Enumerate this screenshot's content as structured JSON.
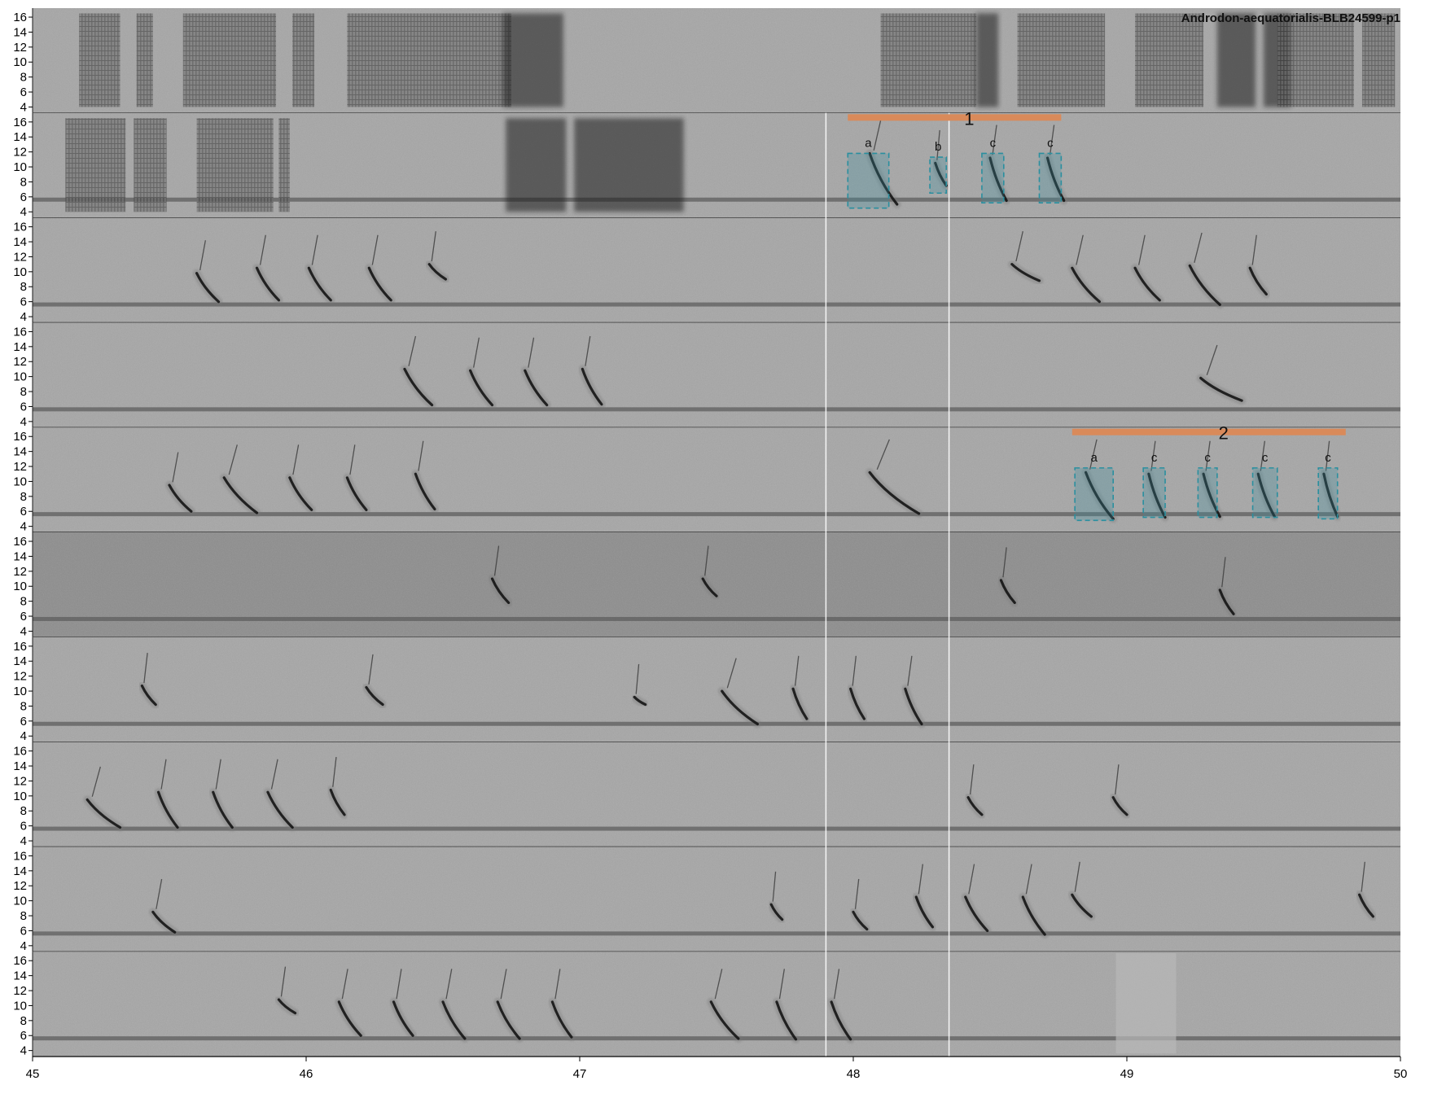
{
  "chart_data": {
    "type": "spectrogram",
    "title": "Androdon-aequatorialis-BLB24599-p1",
    "xlabel": "",
    "ylabel": "",
    "xlim": [
      45,
      50
    ],
    "ylim": [
      3.2,
      17.2
    ],
    "x_ticks": [
      45,
      46,
      47,
      48,
      49,
      50
    ],
    "y_ticks": [
      4,
      6,
      8,
      10,
      12,
      14,
      16
    ],
    "rows": 10,
    "selection_lines_x": [
      47.9,
      48.35
    ],
    "colors": {
      "background": "#a6a6a6",
      "motif_bar": "#d98a5a",
      "syllable_box": "#2a8f9f",
      "syllable_box_fill": "#3a8fa0",
      "selection_line": "#ffffff"
    },
    "motifs": [
      {
        "label": "1",
        "row": 1,
        "x_start": 47.98,
        "x_end": 48.76
      },
      {
        "label": "2",
        "row": 4,
        "x_start": 48.8,
        "x_end": 49.8
      }
    ],
    "syllables": [
      {
        "label": "a",
        "row": 1,
        "x_start": 47.98,
        "x_end": 48.13,
        "f_low": 4.5,
        "f_high": 11.8
      },
      {
        "label": "b",
        "row": 1,
        "x_start": 48.28,
        "x_end": 48.34,
        "f_low": 6.5,
        "f_high": 11.3
      },
      {
        "label": "c",
        "row": 1,
        "x_start": 48.47,
        "x_end": 48.55,
        "f_low": 5.2,
        "f_high": 11.8
      },
      {
        "label": "c",
        "row": 1,
        "x_start": 48.68,
        "x_end": 48.76,
        "f_low": 5.2,
        "f_high": 11.8
      },
      {
        "label": "a",
        "row": 4,
        "x_start": 48.81,
        "x_end": 48.95,
        "f_low": 4.8,
        "f_high": 11.8
      },
      {
        "label": "c",
        "row": 4,
        "x_start": 49.06,
        "x_end": 49.14,
        "f_low": 5.2,
        "f_high": 11.8
      },
      {
        "label": "c",
        "row": 4,
        "x_start": 49.26,
        "x_end": 49.33,
        "f_low": 5.2,
        "f_high": 11.8
      },
      {
        "label": "c",
        "row": 4,
        "x_start": 49.46,
        "x_end": 49.55,
        "f_low": 5.2,
        "f_high": 11.8
      },
      {
        "label": "c",
        "row": 4,
        "x_start": 49.7,
        "x_end": 49.77,
        "f_low": 5.0,
        "f_high": 11.8
      }
    ],
    "sounds": [
      [
        {
          "x": 45.17,
          "w": 0.15,
          "kind": "noise",
          "f": 4,
          "f2": 16.5
        },
        {
          "x": 45.38,
          "w": 0.06,
          "kind": "noise",
          "f": 4,
          "f2": 16.5
        },
        {
          "x": 45.55,
          "w": 0.34,
          "kind": "noise",
          "f": 4,
          "f2": 16.5
        },
        {
          "x": 45.95,
          "w": 0.08,
          "kind": "noise",
          "f": 4,
          "f2": 16.5
        },
        {
          "x": 46.15,
          "w": 0.6,
          "kind": "noise",
          "f": 4,
          "f2": 16.5
        },
        {
          "x": 46.72,
          "w": 0.22,
          "kind": "burst",
          "f": 4,
          "f2": 16.5
        },
        {
          "x": 48.1,
          "w": 0.35,
          "kind": "noise",
          "f": 4,
          "f2": 16.5
        },
        {
          "x": 48.45,
          "w": 0.08,
          "kind": "burst",
          "f": 4,
          "f2": 16.5
        },
        {
          "x": 48.6,
          "w": 0.32,
          "kind": "noise",
          "f": 4,
          "f2": 16.5
        },
        {
          "x": 49.03,
          "w": 0.25,
          "kind": "noise",
          "f": 4,
          "f2": 16.5
        },
        {
          "x": 49.33,
          "w": 0.14,
          "kind": "burst",
          "f": 4,
          "f2": 16.5
        },
        {
          "x": 49.5,
          "w": 0.1,
          "kind": "burst",
          "f": 4,
          "f2": 16.5
        },
        {
          "x": 49.55,
          "w": 0.28,
          "kind": "noise",
          "f": 4,
          "f2": 16.5
        },
        {
          "x": 49.86,
          "w": 0.12,
          "kind": "noise",
          "f": 4,
          "f2": 16.5
        }
      ],
      [
        {
          "x": 45.12,
          "w": 0.22,
          "kind": "noise",
          "f": 4,
          "f2": 16.5
        },
        {
          "x": 45.37,
          "w": 0.12,
          "kind": "noise",
          "f": 4,
          "f2": 16.5
        },
        {
          "x": 45.6,
          "w": 0.28,
          "kind": "noise",
          "f": 4,
          "f2": 16.5
        },
        {
          "x": 45.9,
          "w": 0.04,
          "kind": "noise",
          "f": 4,
          "f2": 16.5
        },
        {
          "x": 46.73,
          "w": 0.22,
          "kind": "burst",
          "f": 4,
          "f2": 16.5
        },
        {
          "x": 46.98,
          "w": 0.4,
          "kind": "burst",
          "f": 4,
          "f2": 16.5
        },
        {
          "x": 48.06,
          "w": 0.1,
          "kind": "call",
          "f": 11.8,
          "f2": 5
        },
        {
          "x": 48.3,
          "w": 0.04,
          "kind": "call",
          "f": 10.5,
          "f2": 7.5
        },
        {
          "x": 48.5,
          "w": 0.06,
          "kind": "call",
          "f": 11.2,
          "f2": 5.5
        },
        {
          "x": 48.71,
          "w": 0.06,
          "kind": "call",
          "f": 11.2,
          "f2": 5.5
        }
      ],
      [
        {
          "x": 45.6,
          "w": 0.08,
          "kind": "call",
          "f": 9.8,
          "f2": 6
        },
        {
          "x": 45.82,
          "w": 0.08,
          "kind": "call",
          "f": 10.5,
          "f2": 6.2
        },
        {
          "x": 46.01,
          "w": 0.08,
          "kind": "call",
          "f": 10.5,
          "f2": 6.2
        },
        {
          "x": 46.23,
          "w": 0.08,
          "kind": "call",
          "f": 10.5,
          "f2": 6.2
        },
        {
          "x": 46.45,
          "w": 0.06,
          "kind": "call",
          "f": 11,
          "f2": 9
        },
        {
          "x": 48.58,
          "w": 0.1,
          "kind": "call",
          "f": 11,
          "f2": 8.8
        },
        {
          "x": 48.8,
          "w": 0.1,
          "kind": "call",
          "f": 10.5,
          "f2": 6
        },
        {
          "x": 49.03,
          "w": 0.09,
          "kind": "call",
          "f": 10.5,
          "f2": 6.2
        },
        {
          "x": 49.23,
          "w": 0.11,
          "kind": "call",
          "f": 10.8,
          "f2": 5.6
        },
        {
          "x": 49.45,
          "w": 0.06,
          "kind": "call",
          "f": 10.5,
          "f2": 7
        }
      ],
      [
        {
          "x": 46.36,
          "w": 0.1,
          "kind": "call",
          "f": 11,
          "f2": 6.2
        },
        {
          "x": 46.6,
          "w": 0.08,
          "kind": "call",
          "f": 10.8,
          "f2": 6.2
        },
        {
          "x": 46.8,
          "w": 0.08,
          "kind": "call",
          "f": 10.8,
          "f2": 6.2
        },
        {
          "x": 47.01,
          "w": 0.07,
          "kind": "call",
          "f": 11,
          "f2": 6.3
        },
        {
          "x": 49.27,
          "w": 0.15,
          "kind": "call",
          "f": 9.8,
          "f2": 6.8
        }
      ],
      [
        {
          "x": 45.5,
          "w": 0.08,
          "kind": "call",
          "f": 9.5,
          "f2": 6
        },
        {
          "x": 45.7,
          "w": 0.12,
          "kind": "call",
          "f": 10.5,
          "f2": 5.8
        },
        {
          "x": 45.94,
          "w": 0.08,
          "kind": "call",
          "f": 10.5,
          "f2": 6.2
        },
        {
          "x": 46.15,
          "w": 0.07,
          "kind": "call",
          "f": 10.5,
          "f2": 6.2
        },
        {
          "x": 46.4,
          "w": 0.07,
          "kind": "call",
          "f": 11,
          "f2": 6.3
        },
        {
          "x": 48.06,
          "w": 0.18,
          "kind": "call",
          "f": 11.2,
          "f2": 5.7
        },
        {
          "x": 48.85,
          "w": 0.1,
          "kind": "call",
          "f": 11.2,
          "f2": 5
        },
        {
          "x": 49.08,
          "w": 0.06,
          "kind": "call",
          "f": 11,
          "f2": 5.2
        },
        {
          "x": 49.28,
          "w": 0.06,
          "kind": "call",
          "f": 11,
          "f2": 5.3
        },
        {
          "x": 49.48,
          "w": 0.06,
          "kind": "call",
          "f": 11,
          "f2": 5.3
        },
        {
          "x": 49.72,
          "w": 0.05,
          "kind": "call",
          "f": 11,
          "f2": 5.3
        }
      ],
      [
        {
          "x": 46.68,
          "w": 0.06,
          "kind": "call",
          "f": 11,
          "f2": 7.8
        },
        {
          "x": 47.45,
          "w": 0.05,
          "kind": "call",
          "f": 11,
          "f2": 8.7
        },
        {
          "x": 48.54,
          "w": 0.05,
          "kind": "call",
          "f": 10.8,
          "f2": 7.8
        },
        {
          "x": 49.34,
          "w": 0.05,
          "kind": "call",
          "f": 9.5,
          "f2": 6.3
        }
      ],
      [
        {
          "x": 45.4,
          "w": 0.05,
          "kind": "call",
          "f": 10.7,
          "f2": 8.2
        },
        {
          "x": 46.22,
          "w": 0.06,
          "kind": "call",
          "f": 10.5,
          "f2": 8.2
        },
        {
          "x": 47.2,
          "w": 0.04,
          "kind": "call",
          "f": 9.2,
          "f2": 8.2
        },
        {
          "x": 47.52,
          "w": 0.13,
          "kind": "call",
          "f": 10,
          "f2": 5.6
        },
        {
          "x": 47.78,
          "w": 0.05,
          "kind": "call",
          "f": 10.3,
          "f2": 6.3
        },
        {
          "x": 47.99,
          "w": 0.05,
          "kind": "call",
          "f": 10.3,
          "f2": 6.3
        },
        {
          "x": 48.19,
          "w": 0.06,
          "kind": "call",
          "f": 10.3,
          "f2": 5.6
        }
      ],
      [
        {
          "x": 45.2,
          "w": 0.12,
          "kind": "call",
          "f": 9.5,
          "f2": 5.8
        },
        {
          "x": 45.46,
          "w": 0.07,
          "kind": "call",
          "f": 10.5,
          "f2": 5.8
        },
        {
          "x": 45.66,
          "w": 0.07,
          "kind": "call",
          "f": 10.5,
          "f2": 5.8
        },
        {
          "x": 45.86,
          "w": 0.09,
          "kind": "call",
          "f": 10.5,
          "f2": 5.8
        },
        {
          "x": 46.09,
          "w": 0.05,
          "kind": "call",
          "f": 10.8,
          "f2": 7.5
        },
        {
          "x": 48.42,
          "w": 0.05,
          "kind": "call",
          "f": 9.8,
          "f2": 7.5
        },
        {
          "x": 48.95,
          "w": 0.05,
          "kind": "call",
          "f": 9.8,
          "f2": 7.5
        }
      ],
      [
        {
          "x": 45.44,
          "w": 0.08,
          "kind": "call",
          "f": 8.5,
          "f2": 5.8
        },
        {
          "x": 47.7,
          "w": 0.04,
          "kind": "call",
          "f": 9.5,
          "f2": 7.5
        },
        {
          "x": 48.0,
          "w": 0.05,
          "kind": "call",
          "f": 8.5,
          "f2": 6.2
        },
        {
          "x": 48.23,
          "w": 0.06,
          "kind": "call",
          "f": 10.5,
          "f2": 6.5
        },
        {
          "x": 48.41,
          "w": 0.08,
          "kind": "call",
          "f": 10.5,
          "f2": 6
        },
        {
          "x": 48.62,
          "w": 0.08,
          "kind": "call",
          "f": 10.5,
          "f2": 5.5
        },
        {
          "x": 48.8,
          "w": 0.07,
          "kind": "call",
          "f": 10.8,
          "f2": 7.9
        },
        {
          "x": 49.85,
          "w": 0.05,
          "kind": "call",
          "f": 10.8,
          "f2": 7.9
        }
      ],
      [
        {
          "x": 45.9,
          "w": 0.06,
          "kind": "call",
          "f": 10.8,
          "f2": 9
        },
        {
          "x": 46.12,
          "w": 0.08,
          "kind": "call",
          "f": 10.5,
          "f2": 6
        },
        {
          "x": 46.32,
          "w": 0.07,
          "kind": "call",
          "f": 10.5,
          "f2": 6
        },
        {
          "x": 46.5,
          "w": 0.08,
          "kind": "call",
          "f": 10.5,
          "f2": 5.6
        },
        {
          "x": 46.7,
          "w": 0.08,
          "kind": "call",
          "f": 10.5,
          "f2": 5.6
        },
        {
          "x": 46.9,
          "w": 0.07,
          "kind": "call",
          "f": 10.5,
          "f2": 5.8
        },
        {
          "x": 47.48,
          "w": 0.1,
          "kind": "call",
          "f": 10.5,
          "f2": 5.6
        },
        {
          "x": 47.72,
          "w": 0.07,
          "kind": "call",
          "f": 10.5,
          "f2": 5.5
        },
        {
          "x": 47.92,
          "w": 0.07,
          "kind": "call",
          "f": 10.5,
          "f2": 5.5
        },
        {
          "x": 48.96,
          "w": 0.22,
          "kind": "patch",
          "f": 3.6,
          "f2": 17
        }
      ]
    ]
  }
}
